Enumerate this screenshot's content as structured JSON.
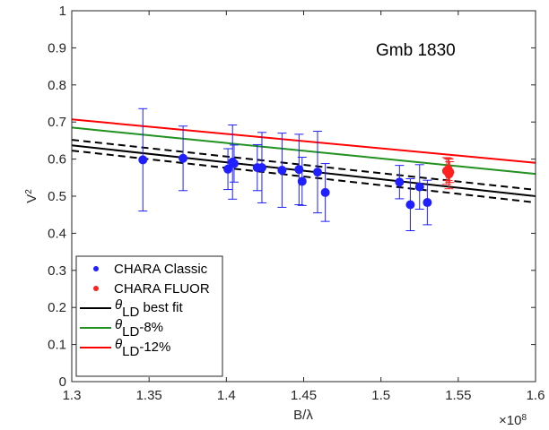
{
  "chart_data": {
    "type": "scatter",
    "annotation": "Gmb 1830",
    "xlabel": "B/λ",
    "ylabel": "V²",
    "ylabel_base": "V",
    "ylabel_sup": "2",
    "x_multiplier_base": "×10",
    "x_multiplier_exp": "8",
    "xlim": [
      1.3,
      1.6
    ],
    "ylim": [
      0,
      1
    ],
    "xticks": [
      "1.3",
      "1.35",
      "1.4",
      "1.45",
      "1.5",
      "1.55",
      "1.6"
    ],
    "yticks": [
      "0",
      "0.1",
      "0.2",
      "0.3",
      "0.4",
      "0.5",
      "0.6",
      "0.7",
      "0.8",
      "0.9",
      "1"
    ],
    "grid": false,
    "legend_position": "bottom-left",
    "series": [
      {
        "name": "CHARA Classic",
        "kind": "points",
        "color": "#1f1fff",
        "points": [
          {
            "x": 1.346,
            "y": 0.598,
            "err": 0.138
          },
          {
            "x": 1.372,
            "y": 0.602,
            "err": 0.087
          },
          {
            "x": 1.401,
            "y": 0.573,
            "err": 0.055
          },
          {
            "x": 1.404,
            "y": 0.592,
            "err": 0.1
          },
          {
            "x": 1.405,
            "y": 0.588,
            "err": 0.05
          },
          {
            "x": 1.42,
            "y": 0.577,
            "err": 0.062
          },
          {
            "x": 1.423,
            "y": 0.577,
            "err": 0.095
          },
          {
            "x": 1.436,
            "y": 0.57,
            "err": 0.1
          },
          {
            "x": 1.447,
            "y": 0.572,
            "err": 0.095
          },
          {
            "x": 1.449,
            "y": 0.54,
            "err": 0.065
          },
          {
            "x": 1.459,
            "y": 0.565,
            "err": 0.11
          },
          {
            "x": 1.464,
            "y": 0.51,
            "err": 0.078
          },
          {
            "x": 1.512,
            "y": 0.538,
            "err": 0.045
          },
          {
            "x": 1.519,
            "y": 0.477,
            "err": 0.07
          },
          {
            "x": 1.525,
            "y": 0.525,
            "err": 0.06
          },
          {
            "x": 1.53,
            "y": 0.483,
            "err": 0.06
          }
        ]
      },
      {
        "name": "CHARA FLUOR",
        "kind": "points",
        "color": "#ff2020",
        "points": [
          {
            "x": 1.5425,
            "y": 0.568,
            "err": 0.036
          },
          {
            "x": 1.5435,
            "y": 0.572,
            "err": 0.03
          },
          {
            "x": 1.544,
            "y": 0.56,
            "err": 0.04
          },
          {
            "x": 1.5445,
            "y": 0.565,
            "err": 0.028
          }
        ]
      },
      {
        "name": "θ_LD best fit",
        "label_main": "θ",
        "label_sub": "LD",
        "label_rest": " best fit",
        "kind": "line",
        "color": "#000000",
        "x": [
          1.3,
          1.6
        ],
        "y": [
          0.637,
          0.5
        ]
      },
      {
        "name": "θ_LD best fit +σ",
        "kind": "line",
        "dashed": true,
        "legend": false,
        "color": "#000000",
        "x": [
          1.3,
          1.6
        ],
        "y": [
          0.652,
          0.517
        ]
      },
      {
        "name": "θ_LD best fit −σ",
        "kind": "line",
        "dashed": true,
        "legend": false,
        "color": "#000000",
        "x": [
          1.3,
          1.6
        ],
        "y": [
          0.623,
          0.483
        ]
      },
      {
        "name": "θ_LD-8%",
        "label_main": "θ",
        "label_sub": "LD",
        "label_rest": "-8%",
        "kind": "line",
        "color": "#21911f",
        "x": [
          1.3,
          1.6
        ],
        "y": [
          0.685,
          0.56
        ]
      },
      {
        "name": "θ_LD-12%",
        "label_main": "θ",
        "label_sub": "LD",
        "label_rest": "-12%",
        "kind": "line",
        "color": "#ff0000",
        "x": [
          1.3,
          1.6
        ],
        "y": [
          0.707,
          0.59
        ]
      }
    ]
  }
}
